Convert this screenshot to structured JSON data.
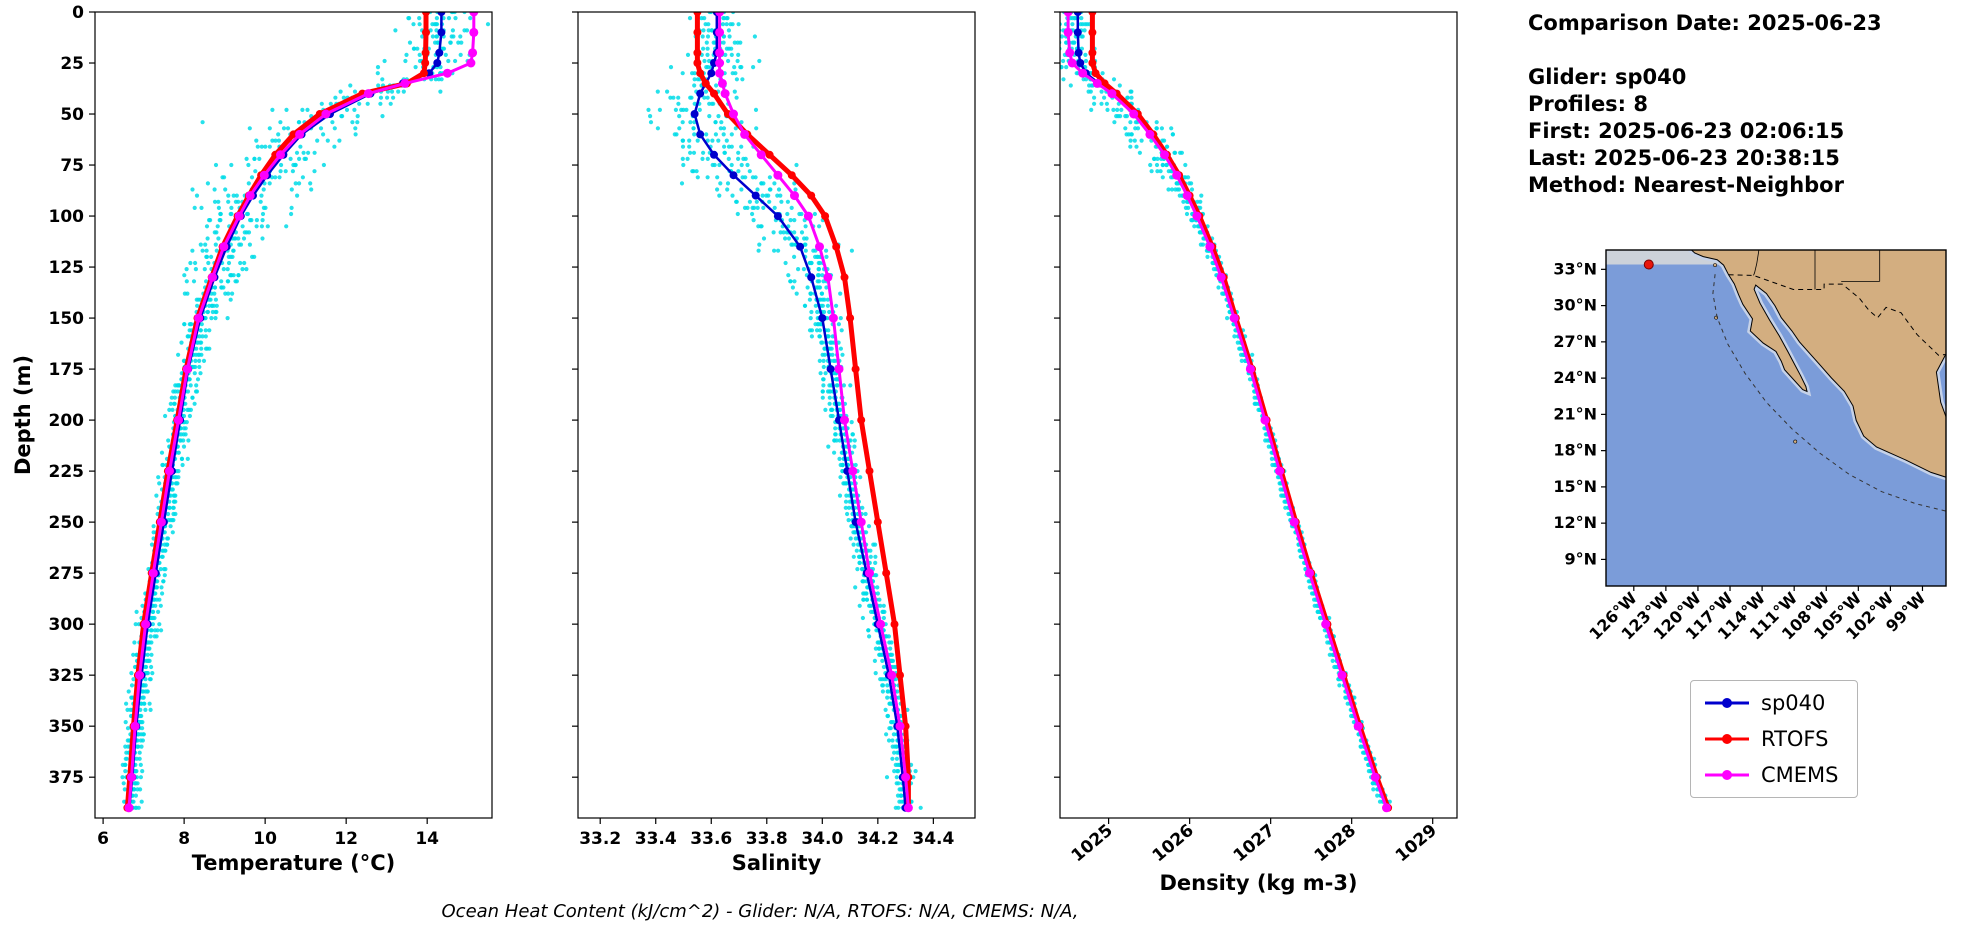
{
  "info_panel": {
    "date_line": "Comparison Date: 2025-06-23",
    "lines": [
      "Glider: sp040",
      "Profiles: 8",
      "First: 2025-06-23 02:06:15",
      "Last: 2025-06-23 20:38:15",
      "Method: Nearest-Neighbor"
    ]
  },
  "footer": "Ocean Heat Content (kJ/cm^2) - Glider: N/A,  RTOFS: N/A,  CMEMS: N/A,",
  "legend": {
    "items": [
      {
        "label": "sp040",
        "color": "#0000cd"
      },
      {
        "label": "RTOFS",
        "color": "#ff0000"
      },
      {
        "label": "CMEMS",
        "color": "#ff00ff"
      }
    ]
  },
  "colors": {
    "scatter": "#00dce8",
    "map_ocean": "#7b9cd9",
    "map_land": "#d3ae80",
    "map_shelf": "#c6d2e8",
    "map_band": "#ccd2da",
    "glider_marker": "#e8160c"
  },
  "chart_data": [
    {
      "type": "line",
      "xlabel": "Temperature (°C)",
      "ylabel": "Depth (m)",
      "xlim": [
        5.8,
        15.6
      ],
      "ylim": [
        0,
        395
      ],
      "xticks": [
        6,
        8,
        10,
        12,
        14
      ],
      "xtick_labels": [
        "6",
        "8",
        "10",
        "12",
        "14"
      ],
      "yticks": [
        0,
        25,
        50,
        75,
        100,
        125,
        150,
        175,
        200,
        225,
        250,
        275,
        300,
        325,
        350,
        375
      ],
      "ytick_labels": [
        "0",
        "25",
        "50",
        "75",
        "100",
        "125",
        "150",
        "175",
        "200",
        "225",
        "250",
        "275",
        "300",
        "325",
        "350",
        "375"
      ],
      "rotate_xticks": false,
      "depths": [
        0,
        10,
        20,
        25,
        30,
        35,
        40,
        50,
        60,
        70,
        80,
        90,
        100,
        115,
        130,
        150,
        175,
        200,
        225,
        250,
        275,
        300,
        325,
        350,
        375,
        390
      ],
      "series": [
        {
          "name": "sp040",
          "color": "#0000cd",
          "lw": 2.5,
          "marker": 4,
          "values": [
            14.35,
            14.35,
            14.3,
            14.25,
            14.05,
            13.4,
            12.6,
            11.6,
            10.9,
            10.45,
            10.05,
            9.7,
            9.4,
            9.05,
            8.75,
            8.4,
            8.1,
            7.9,
            7.7,
            7.5,
            7.3,
            7.1,
            6.95,
            6.82,
            6.72,
            6.65
          ]
        },
        {
          "name": "RTOFS",
          "color": "#ff0000",
          "lw": 5,
          "marker": 4,
          "values": [
            13.97,
            13.97,
            13.96,
            13.95,
            13.92,
            13.5,
            12.4,
            11.35,
            10.7,
            10.25,
            9.9,
            9.6,
            9.32,
            8.95,
            8.68,
            8.33,
            8.05,
            7.83,
            7.6,
            7.4,
            7.2,
            7.0,
            6.86,
            6.75,
            6.66,
            6.6
          ]
        },
        {
          "name": "CMEMS",
          "color": "#ff00ff",
          "lw": 3,
          "marker": 4.5,
          "values": [
            15.15,
            15.15,
            15.12,
            15.08,
            14.5,
            13.45,
            12.55,
            11.5,
            10.85,
            10.38,
            9.98,
            9.63,
            9.36,
            8.98,
            8.7,
            8.36,
            8.08,
            7.86,
            7.64,
            7.44,
            7.24,
            7.05,
            6.9,
            6.79,
            6.7,
            6.64
          ]
        }
      ],
      "scatter": {
        "name": "glider-raw-profiles",
        "profiles": 8,
        "sigma_base": 0.14,
        "sigma_peak": 0.75,
        "peak_depth": 70,
        "peak_width": 42,
        "step": 3
      }
    },
    {
      "type": "line",
      "xlabel": "Salinity",
      "ylabel": "",
      "xlim": [
        33.12,
        34.55
      ],
      "ylim": [
        0,
        395
      ],
      "xticks": [
        33.2,
        33.4,
        33.6,
        33.8,
        34.0,
        34.2,
        34.4
      ],
      "xtick_labels": [
        "33.2",
        "33.4",
        "33.6",
        "33.8",
        "34.0",
        "34.2",
        "34.4"
      ],
      "yticks": [
        0,
        25,
        50,
        75,
        100,
        125,
        150,
        175,
        200,
        225,
        250,
        275,
        300,
        325,
        350,
        375
      ],
      "ytick_labels": [],
      "rotate_xticks": false,
      "depths": [
        0,
        10,
        20,
        25,
        30,
        35,
        40,
        50,
        60,
        70,
        80,
        90,
        100,
        115,
        130,
        150,
        175,
        200,
        225,
        250,
        275,
        300,
        325,
        350,
        375,
        390
      ],
      "series": [
        {
          "name": "sp040",
          "color": "#0000cd",
          "lw": 2.5,
          "marker": 4,
          "values": [
            33.62,
            33.62,
            33.62,
            33.61,
            33.6,
            33.58,
            33.56,
            33.54,
            33.56,
            33.61,
            33.68,
            33.76,
            33.84,
            33.92,
            33.96,
            34.0,
            34.03,
            34.06,
            34.09,
            34.12,
            34.16,
            34.2,
            34.24,
            34.27,
            34.29,
            34.3
          ]
        },
        {
          "name": "RTOFS",
          "color": "#ff0000",
          "lw": 5,
          "marker": 4,
          "values": [
            33.55,
            33.55,
            33.55,
            33.55,
            33.56,
            33.58,
            33.61,
            33.66,
            33.73,
            33.81,
            33.89,
            33.96,
            34.01,
            34.05,
            34.08,
            34.1,
            34.12,
            34.14,
            34.17,
            34.2,
            34.23,
            34.26,
            34.28,
            34.3,
            34.31,
            34.31
          ]
        },
        {
          "name": "CMEMS",
          "color": "#ff00ff",
          "lw": 3,
          "marker": 4.5,
          "values": [
            33.63,
            33.63,
            33.63,
            33.63,
            33.63,
            33.64,
            33.65,
            33.68,
            33.72,
            33.78,
            33.84,
            33.9,
            33.95,
            33.99,
            34.02,
            34.04,
            34.06,
            34.08,
            34.11,
            34.14,
            34.17,
            34.21,
            34.25,
            34.28,
            34.3,
            34.31
          ]
        }
      ],
      "scatter": {
        "name": "glider-raw-profiles",
        "profiles": 8,
        "sigma_base": 0.02,
        "sigma_peak": 0.08,
        "peak_depth": 70,
        "peak_width": 42,
        "step": 3
      }
    },
    {
      "type": "line",
      "xlabel": "Density (kg m-3)",
      "ylabel": "",
      "xlim": [
        1024.4,
        1029.3
      ],
      "ylim": [
        0,
        395
      ],
      "xticks": [
        1025,
        1026,
        1027,
        1028,
        1029
      ],
      "xtick_labels": [
        "1025",
        "1026",
        "1027",
        "1028",
        "1029"
      ],
      "yticks": [
        0,
        25,
        50,
        75,
        100,
        125,
        150,
        175,
        200,
        225,
        250,
        275,
        300,
        325,
        350,
        375
      ],
      "ytick_labels": [],
      "rotate_xticks": true,
      "depths": [
        0,
        10,
        20,
        25,
        30,
        35,
        40,
        50,
        60,
        70,
        80,
        90,
        100,
        115,
        130,
        150,
        175,
        200,
        225,
        250,
        275,
        300,
        325,
        350,
        375,
        390
      ],
      "series": [
        {
          "name": "sp040",
          "color": "#0000cd",
          "lw": 2.5,
          "marker": 4,
          "values": [
            1024.62,
            1024.62,
            1024.63,
            1024.65,
            1024.72,
            1024.88,
            1025.06,
            1025.33,
            1025.53,
            1025.7,
            1025.85,
            1025.98,
            1026.1,
            1026.26,
            1026.4,
            1026.56,
            1026.76,
            1026.94,
            1027.12,
            1027.3,
            1027.49,
            1027.69,
            1027.89,
            1028.09,
            1028.3,
            1028.44
          ]
        },
        {
          "name": "RTOFS",
          "color": "#ff0000",
          "lw": 5,
          "marker": 4,
          "values": [
            1024.8,
            1024.8,
            1024.8,
            1024.8,
            1024.84,
            1024.95,
            1025.1,
            1025.36,
            1025.55,
            1025.72,
            1025.87,
            1026.0,
            1026.12,
            1026.28,
            1026.42,
            1026.57,
            1026.77,
            1026.95,
            1027.13,
            1027.31,
            1027.5,
            1027.7,
            1027.9,
            1028.1,
            1028.31,
            1028.45
          ]
        },
        {
          "name": "CMEMS",
          "color": "#ff00ff",
          "lw": 3,
          "marker": 4.5,
          "values": [
            1024.5,
            1024.5,
            1024.52,
            1024.55,
            1024.68,
            1024.86,
            1025.04,
            1025.31,
            1025.51,
            1025.69,
            1025.84,
            1025.97,
            1026.09,
            1026.25,
            1026.39,
            1026.55,
            1026.75,
            1026.93,
            1027.11,
            1027.29,
            1027.48,
            1027.68,
            1027.88,
            1028.08,
            1028.29,
            1028.43
          ]
        }
      ],
      "scatter": {
        "name": "glider-raw-profiles",
        "profiles": 8,
        "sigma_base": 0.03,
        "sigma_peak": 0.16,
        "peak_depth": 45,
        "peak_width": 30,
        "step": 3
      }
    }
  ],
  "map": {
    "lon_range": [
      -128.6,
      -96.8
    ],
    "lat_range": [
      6.8,
      34.6
    ],
    "xticks": [
      -126,
      -123,
      -120,
      -117,
      -114,
      -111,
      -108,
      -105,
      -102,
      -99
    ],
    "xtick_labels": [
      "126°W",
      "123°W",
      "120°W",
      "117°W",
      "114°W",
      "111°W",
      "108°W",
      "105°W",
      "102°W",
      "99°W"
    ],
    "yticks": [
      33,
      30,
      27,
      24,
      21,
      18,
      15,
      12,
      9
    ],
    "ytick_labels": [
      "33°N",
      "30°N",
      "27°N",
      "24°N",
      "21°N",
      "18°N",
      "15°N",
      "12°N",
      "9°N"
    ],
    "glider_position": {
      "lon": -124.6,
      "lat": 33.4
    }
  }
}
